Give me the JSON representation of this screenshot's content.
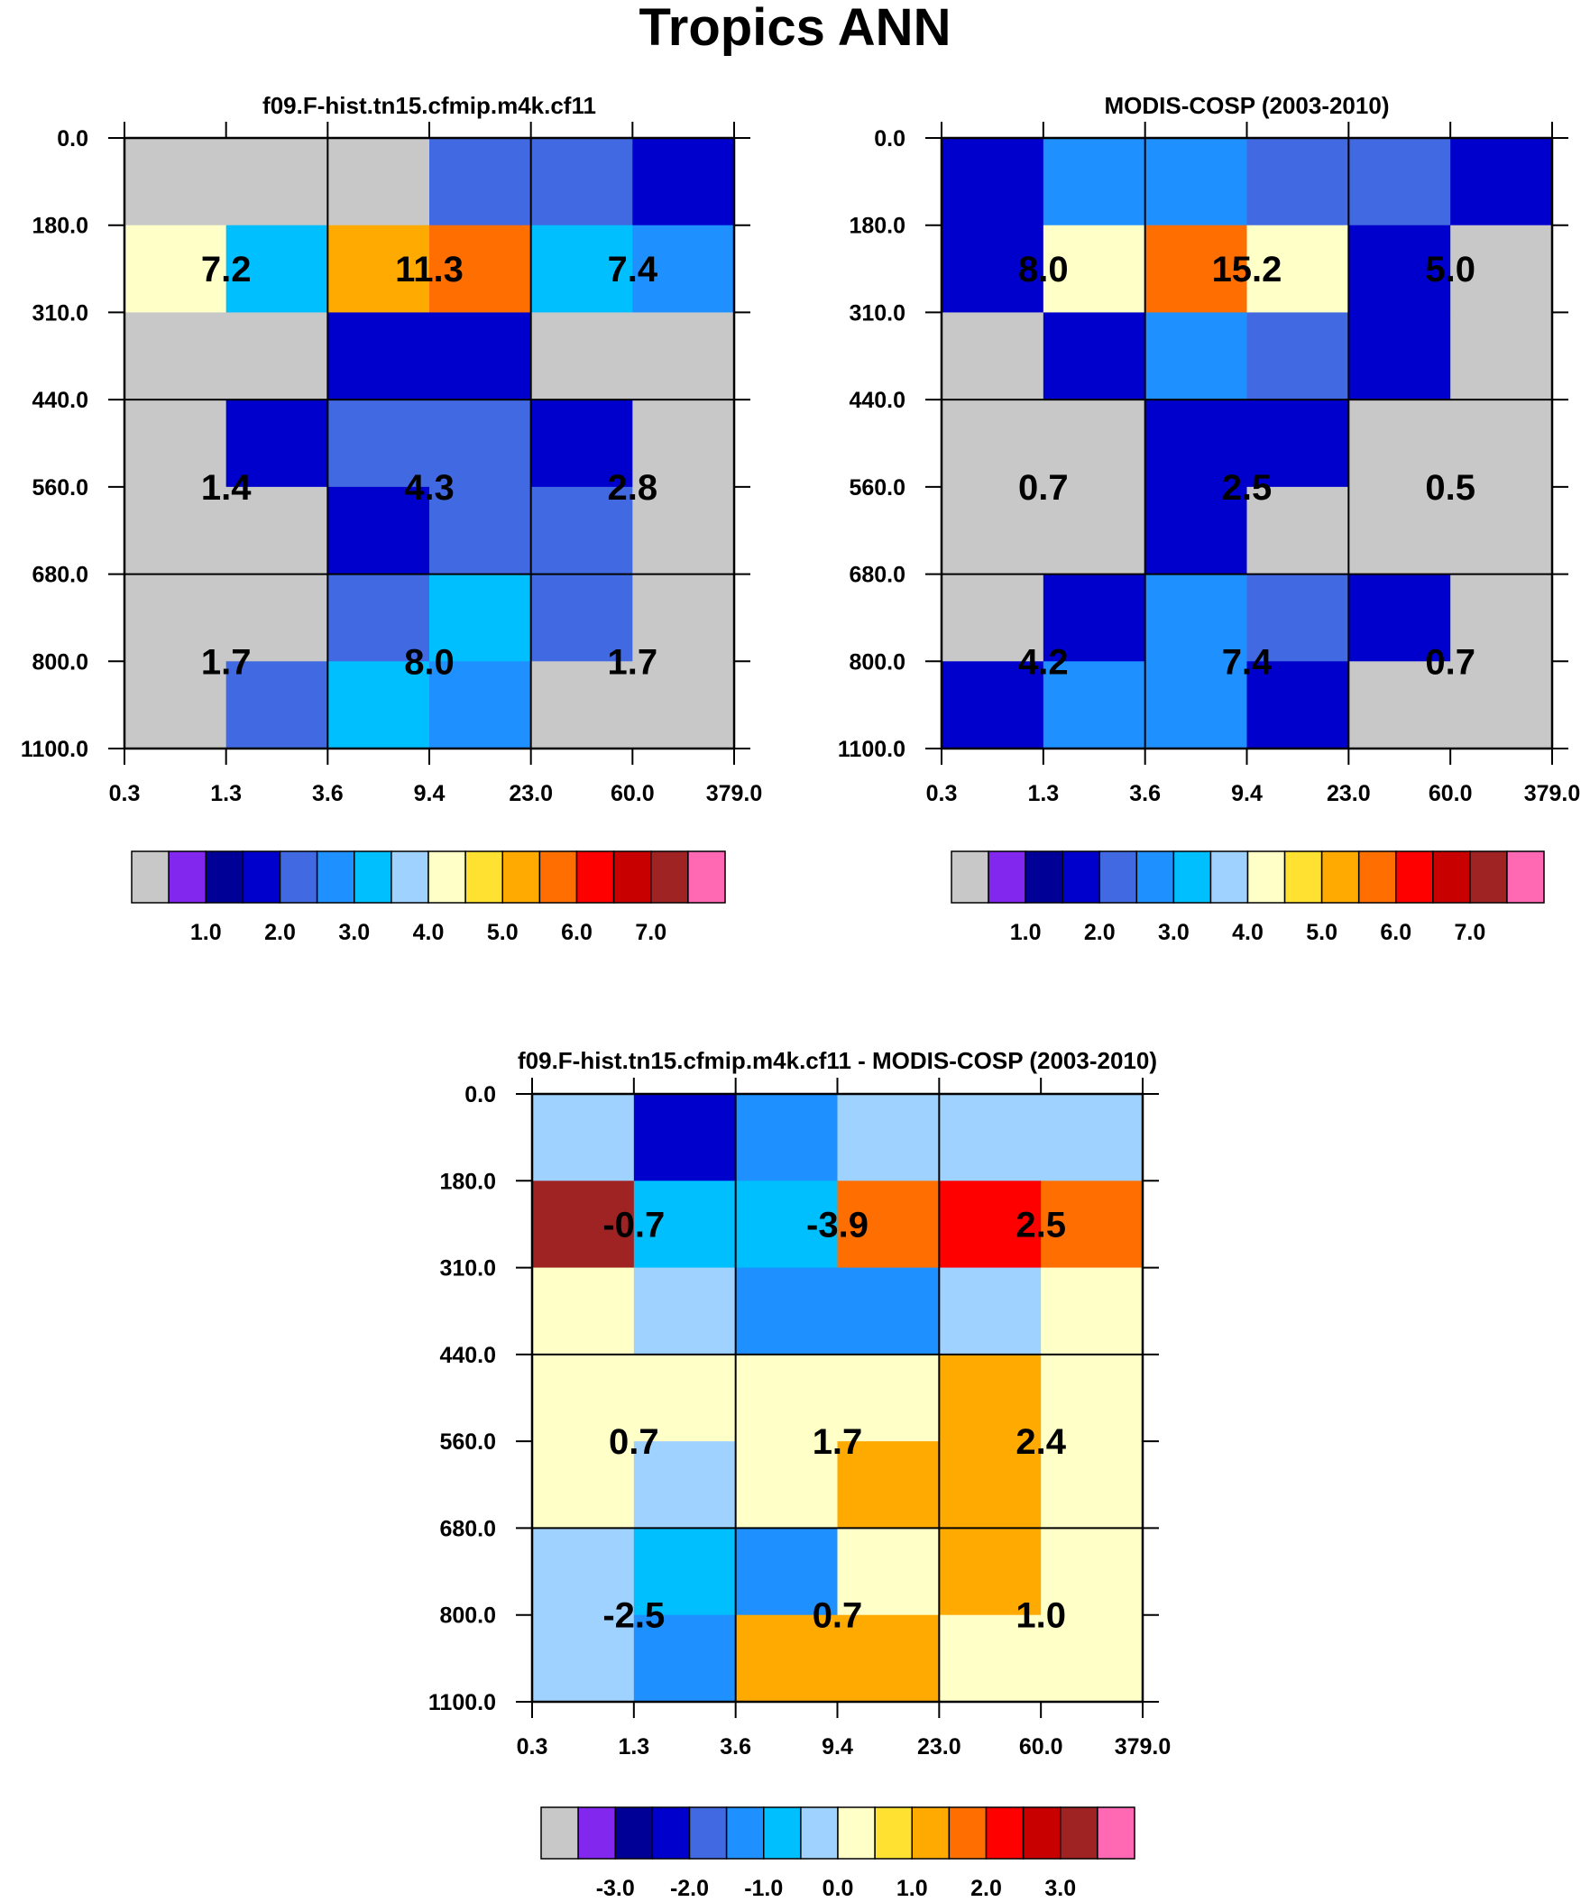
{
  "figure_title": "Tropics ANN",
  "chart_data": [
    {
      "type": "heatmap",
      "title": "f09.F-hist.tn15.cfmip.m4k.cf11",
      "xlabel": "",
      "ylabel": "",
      "x_ticks": [
        "0.3",
        "1.3",
        "3.6",
        "9.4",
        "23.0",
        "60.0",
        "379.0"
      ],
      "y_ticks": [
        "0.0",
        "180.0",
        "310.0",
        "440.0",
        "560.0",
        "680.0",
        "800.0",
        "1100.0"
      ],
      "grid_values": [
        [
          0.0,
          0.0,
          0.0,
          1.5,
          1.5,
          1.0
        ],
        [
          3.5,
          2.5,
          4.5,
          5.0,
          2.5,
          2.0
        ],
        [
          0.0,
          0.0,
          1.0,
          1.0,
          0.0,
          0.0
        ],
        [
          0.0,
          1.0,
          1.5,
          1.5,
          1.0,
          0.0
        ],
        [
          0.0,
          0.0,
          1.0,
          1.5,
          1.5,
          0.0
        ],
        [
          0.0,
          0.0,
          1.5,
          2.5,
          1.5,
          0.0
        ],
        [
          0.0,
          1.5,
          2.5,
          2.0,
          0.0,
          0.0
        ]
      ],
      "group_labels": [
        [
          "7.2",
          "11.3",
          "7.4"
        ],
        [
          "1.4",
          "4.3",
          "2.8"
        ],
        [
          "1.7",
          "8.0",
          "1.7"
        ]
      ],
      "colorbar": {
        "colors": [
          "#C8C8C8",
          "#8228EE",
          "#000096",
          "#0000CD",
          "#4169E1",
          "#1E90FF",
          "#00BFFF",
          "#A0D2FF",
          "#FFFFC8",
          "#FFE132",
          "#FFAA00",
          "#FF6E00",
          "#FF0000",
          "#C80000",
          "#A02323",
          "#FF69B4"
        ],
        "labels": [
          "1.0",
          "2.0",
          "3.0",
          "4.0",
          "5.0",
          "6.0",
          "7.0"
        ],
        "levels": [
          0.01,
          0.5,
          1.0,
          1.5,
          2.0,
          2.5,
          3.0,
          3.5,
          4.0,
          4.5,
          5.0,
          5.5,
          6.0,
          6.5,
          7.0
        ]
      }
    },
    {
      "type": "heatmap",
      "title": "MODIS-COSP (2003-2010)",
      "xlabel": "",
      "ylabel": "",
      "x_ticks": [
        "0.3",
        "1.3",
        "3.6",
        "9.4",
        "23.0",
        "60.0",
        "379.0"
      ],
      "y_ticks": [
        "0.0",
        "180.0",
        "310.0",
        "440.0",
        "560.0",
        "680.0",
        "800.0",
        "1100.0"
      ],
      "grid_values": [
        [
          1.0,
          2.0,
          2.0,
          1.5,
          1.5,
          1.0
        ],
        [
          1.0,
          3.5,
          5.0,
          3.5,
          1.0,
          0.0
        ],
        [
          0.0,
          1.0,
          2.0,
          1.5,
          1.0,
          0.0
        ],
        [
          0.0,
          0.0,
          1.0,
          1.0,
          0.0,
          0.0
        ],
        [
          0.0,
          0.0,
          1.0,
          0.0,
          0.0,
          0.0
        ],
        [
          0.0,
          1.0,
          2.0,
          1.5,
          1.0,
          0.0
        ],
        [
          1.0,
          2.0,
          2.0,
          1.0,
          0.0,
          0.0
        ]
      ],
      "group_labels": [
        [
          "8.0",
          "15.2",
          "5.0"
        ],
        [
          "0.7",
          "2.5",
          "0.5"
        ],
        [
          "4.2",
          "7.4",
          "0.7"
        ]
      ],
      "colorbar": {
        "colors": [
          "#C8C8C8",
          "#8228EE",
          "#000096",
          "#0000CD",
          "#4169E1",
          "#1E90FF",
          "#00BFFF",
          "#A0D2FF",
          "#FFFFC8",
          "#FFE132",
          "#FFAA00",
          "#FF6E00",
          "#FF0000",
          "#C80000",
          "#A02323",
          "#FF69B4"
        ],
        "labels": [
          "1.0",
          "2.0",
          "3.0",
          "4.0",
          "5.0",
          "6.0",
          "7.0"
        ],
        "levels": [
          0.01,
          0.5,
          1.0,
          1.5,
          2.0,
          2.5,
          3.0,
          3.5,
          4.0,
          4.5,
          5.0,
          5.5,
          6.0,
          6.5,
          7.0
        ]
      }
    },
    {
      "type": "heatmap",
      "title": "f09.F-hist.tn15.cfmip.m4k.cf11 - MODIS-COSP (2003-2010)",
      "xlabel": "",
      "ylabel": "",
      "x_ticks": [
        "0.3",
        "1.3",
        "3.6",
        "9.4",
        "23.0",
        "60.0",
        "379.0"
      ],
      "y_ticks": [
        "0.0",
        "180.0",
        "310.0",
        "440.0",
        "560.0",
        "680.0",
        "800.0",
        "1100.0"
      ],
      "grid_values": [
        [
          -0.2,
          -2.5,
          -1.5,
          -0.2,
          -0.2,
          -0.2
        ],
        [
          3.2,
          -0.8,
          -0.8,
          1.8,
          2.2,
          1.8
        ],
        [
          0.2,
          -0.2,
          -1.2,
          -1.2,
          -0.2,
          0.2
        ],
        [
          0.2,
          0.2,
          0.2,
          0.2,
          1.2,
          0.2
        ],
        [
          0.2,
          -0.2,
          0.2,
          1.2,
          1.2,
          0.2
        ],
        [
          -0.2,
          -0.8,
          -1.2,
          0.2,
          1.2,
          0.2
        ],
        [
          -0.2,
          -1.2,
          1.2,
          1.2,
          0.2,
          0.2
        ]
      ],
      "group_labels": [
        [
          "-0.7",
          "-3.9",
          "2.5"
        ],
        [
          "0.7",
          "1.7",
          "2.4"
        ],
        [
          "-2.5",
          "0.7",
          "1.0"
        ]
      ],
      "colorbar": {
        "colors": [
          "#C8C8C8",
          "#8228EE",
          "#000096",
          "#0000CD",
          "#4169E1",
          "#1E90FF",
          "#00BFFF",
          "#A0D2FF",
          "#FFFFC8",
          "#FFE132",
          "#FFAA00",
          "#FF6E00",
          "#FF0000",
          "#C80000",
          "#A02323",
          "#FF69B4"
        ],
        "labels": [
          "-3.0",
          "-2.0",
          "-1.0",
          "0.0",
          "1.0",
          "2.0",
          "3.0"
        ],
        "levels": [
          -3.5,
          -3.0,
          -2.5,
          -2.0,
          -1.5,
          -1.0,
          -0.5,
          0.0,
          0.5,
          1.0,
          1.5,
          2.0,
          2.5,
          3.0,
          3.5
        ]
      }
    }
  ]
}
